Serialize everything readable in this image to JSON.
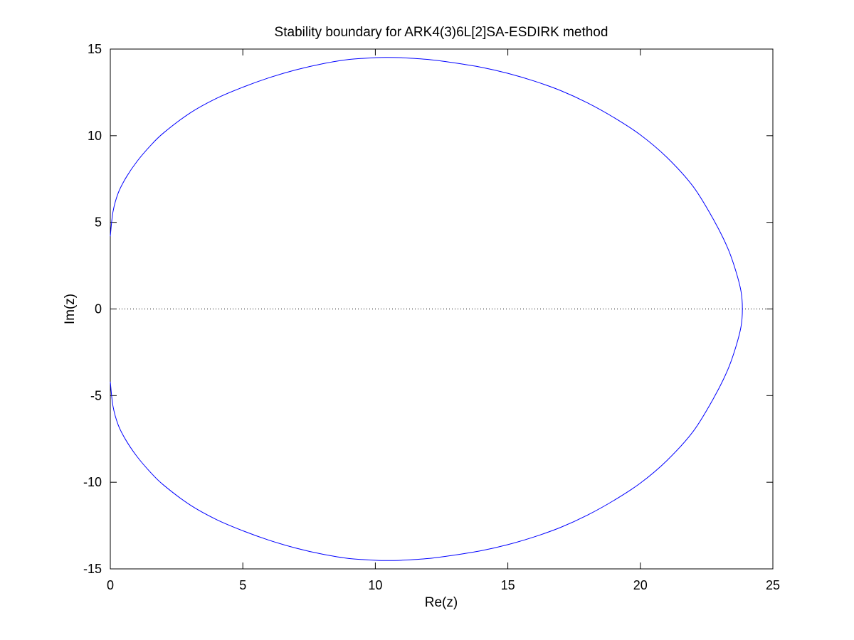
{
  "chart_data": {
    "type": "line",
    "title": "Stability boundary for ARK4(3)6L[2]SA-ESDIRK method",
    "xlabel": "Re(z)",
    "ylabel": "Im(z)",
    "xlim": [
      0,
      25
    ],
    "ylim": [
      -15,
      15
    ],
    "xticks": [
      0,
      5,
      10,
      15,
      20,
      25
    ],
    "yticks": [
      -15,
      -10,
      -5,
      0,
      5,
      10,
      15
    ],
    "xtick_labels": [
      "0",
      "5",
      "10",
      "15",
      "20",
      "25"
    ],
    "ytick_labels": [
      "-15",
      "-10",
      "-5",
      "0",
      "5",
      "10",
      "15"
    ],
    "grid": false,
    "reference_line": {
      "y": 0,
      "style": "dotted",
      "color": "#000000"
    },
    "series": [
      {
        "color": "#0000ff",
        "x": [
          0.0,
          0.1,
          0.3,
          0.6,
          1.0,
          1.5,
          2.0,
          3.0,
          4.0,
          5.0,
          6.0,
          7.0,
          8.0,
          9.0,
          10.0,
          10.4,
          11.0,
          12.0,
          13.0,
          14.0,
          15.0,
          16.0,
          17.0,
          18.0,
          19.0,
          20.0,
          21.0,
          22.0,
          22.8,
          23.3,
          23.6,
          23.8,
          23.85,
          23.8,
          23.6,
          23.3,
          22.8,
          22.0,
          21.0,
          20.0,
          19.0,
          18.0,
          17.0,
          16.0,
          15.0,
          14.0,
          13.0,
          12.0,
          11.0,
          10.4,
          10.0,
          9.0,
          8.0,
          7.0,
          6.0,
          5.0,
          4.0,
          3.0,
          2.0,
          1.5,
          1.0,
          0.6,
          0.3,
          0.1,
          0.0
        ],
        "y": [
          4.2,
          5.6,
          6.7,
          7.6,
          8.5,
          9.4,
          10.15,
          11.3,
          12.15,
          12.8,
          13.35,
          13.8,
          14.15,
          14.4,
          14.5,
          14.52,
          14.5,
          14.4,
          14.2,
          13.95,
          13.6,
          13.15,
          12.6,
          11.9,
          11.05,
          10.05,
          8.75,
          7.05,
          5.05,
          3.5,
          2.2,
          1.0,
          0.0,
          -1.0,
          -2.2,
          -3.5,
          -5.05,
          -7.05,
          -8.75,
          -10.05,
          -11.05,
          -11.9,
          -12.6,
          -13.15,
          -13.6,
          -13.95,
          -14.2,
          -14.4,
          -14.5,
          -14.52,
          -14.5,
          -14.4,
          -14.15,
          -13.8,
          -13.35,
          -12.8,
          -12.15,
          -11.3,
          -10.15,
          -9.4,
          -8.5,
          -7.6,
          -6.7,
          -5.6,
          -4.2
        ]
      }
    ]
  }
}
